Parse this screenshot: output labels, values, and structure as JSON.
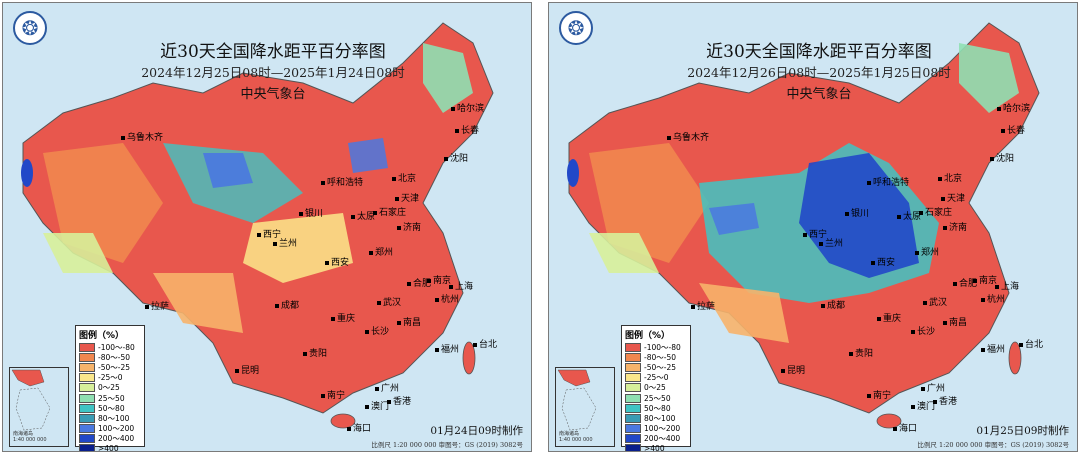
{
  "maps": [
    {
      "title": "近30天全国降水距平百分率图",
      "period": "2024年12月25日08时—2025年1月24日08时",
      "issuer": "中央气象台",
      "made_note": "01月24日09时制作",
      "scale_note": "比例尺 1:20 000 000   审图号：GS (2019) 3082号"
    },
    {
      "title": "近30天全国降水距平百分率图",
      "period": "2024年12月26日08时—2025年1月25日08时",
      "issuer": "中央气象台",
      "made_note": "01月25日09时制作",
      "scale_note": "比例尺 1:20 000 000   审图号：GS (2019) 3082号"
    }
  ],
  "legend": {
    "title": "图例（%）",
    "items": [
      {
        "label": "-100～-80",
        "color": "#e8574d"
      },
      {
        "label": "-80～-50",
        "color": "#f1874f"
      },
      {
        "label": "-50～-25",
        "color": "#f7b36a"
      },
      {
        "label": "-25～0",
        "color": "#fbe78b"
      },
      {
        "label": "0～25",
        "color": "#d7ef9a"
      },
      {
        "label": "25～50",
        "color": "#8fe0b2"
      },
      {
        "label": "50～80",
        "color": "#3fc4c4"
      },
      {
        "label": "80～100",
        "color": "#3a9bb4"
      },
      {
        "label": "100～200",
        "color": "#4a78e0"
      },
      {
        "label": "200～400",
        "color": "#2148c8"
      },
      {
        "label": ">400",
        "color": "#0a1f8c"
      }
    ]
  },
  "inset": {
    "label": "南海诸岛\n1:40 000 000"
  },
  "cities": [
    "乌鲁木齐",
    "哈尔滨",
    "长春",
    "沈阳",
    "北京",
    "天津",
    "呼和浩特",
    "太原",
    "石家庄",
    "济南",
    "银川",
    "兰州",
    "西宁",
    "西安",
    "郑州",
    "拉萨",
    "成都",
    "重庆",
    "武汉",
    "合肥",
    "南京",
    "上海",
    "杭州",
    "长沙",
    "南昌",
    "福州",
    "台北",
    "贵阳",
    "昆明",
    "南宁",
    "广州",
    "香港",
    "澳门",
    "海口"
  ]
}
